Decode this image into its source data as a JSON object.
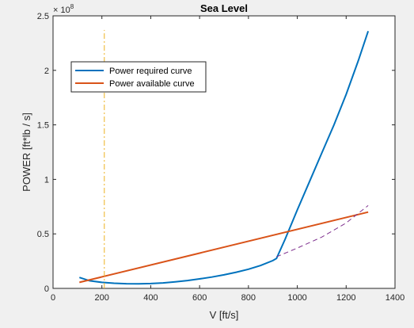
{
  "figure": {
    "background": "#f0f0f0"
  },
  "chart_data": {
    "type": "line",
    "title": "Sea Level",
    "xlabel": "V [ft/s]",
    "ylabel": "POWER [ft*lb / s]",
    "xlim": [
      0,
      1400
    ],
    "ylim": [
      0,
      250000000
    ],
    "xticks": [
      0,
      200,
      400,
      600,
      800,
      1000,
      1200,
      1400
    ],
    "yticks": [
      0,
      50000000,
      100000000,
      150000000,
      200000000,
      250000000
    ],
    "xtick_labels": [
      "0",
      "200",
      "400",
      "600",
      "800",
      "1000",
      "1200",
      "1400"
    ],
    "ytick_labels": [
      "0",
      "0.5",
      "1",
      "1.5",
      "2",
      "2.5"
    ],
    "y_exponent_label": {
      "base": "× 10",
      "exp": "8"
    },
    "grid": false,
    "legend": {
      "placement": "upper-left"
    },
    "series": [
      {
        "name": "Power required curve",
        "color": "#0072bd",
        "style": "solid",
        "in_legend": true,
        "x": [
          108,
          150,
          200,
          250,
          300,
          350,
          400,
          450,
          500,
          550,
          600,
          650,
          700,
          750,
          800,
          850,
          900,
          915,
          950,
          1000,
          1050,
          1100,
          1150,
          1200,
          1250,
          1290
        ],
        "y": [
          10000000,
          7000000,
          5500000,
          4700000,
          4300000,
          4200000,
          4400000,
          5000000,
          6000000,
          7200000,
          8700000,
          10400000,
          12400000,
          14800000,
          17600000,
          21000000,
          25500000,
          27500000,
          45000000,
          72000000,
          98000000,
          124000000,
          150000000,
          178000000,
          209000000,
          236000000
        ]
      },
      {
        "name": "Power available curve",
        "color": "#d95319",
        "style": "solid",
        "in_legend": true,
        "x": [
          108,
          1290
        ],
        "y": [
          5500000,
          70000000
        ]
      },
      {
        "name": "",
        "color": "#7e2f8e",
        "style": "dashed",
        "in_legend": false,
        "x": [
          915,
          1000,
          1100,
          1200,
          1290
        ],
        "y": [
          29000000,
          37000000,
          47000000,
          60000000,
          76000000
        ]
      },
      {
        "name": "",
        "color": "#edb120",
        "style": "dash-dot",
        "in_legend": false,
        "x": [
          210,
          210
        ],
        "y": [
          0,
          237000000
        ]
      }
    ]
  }
}
